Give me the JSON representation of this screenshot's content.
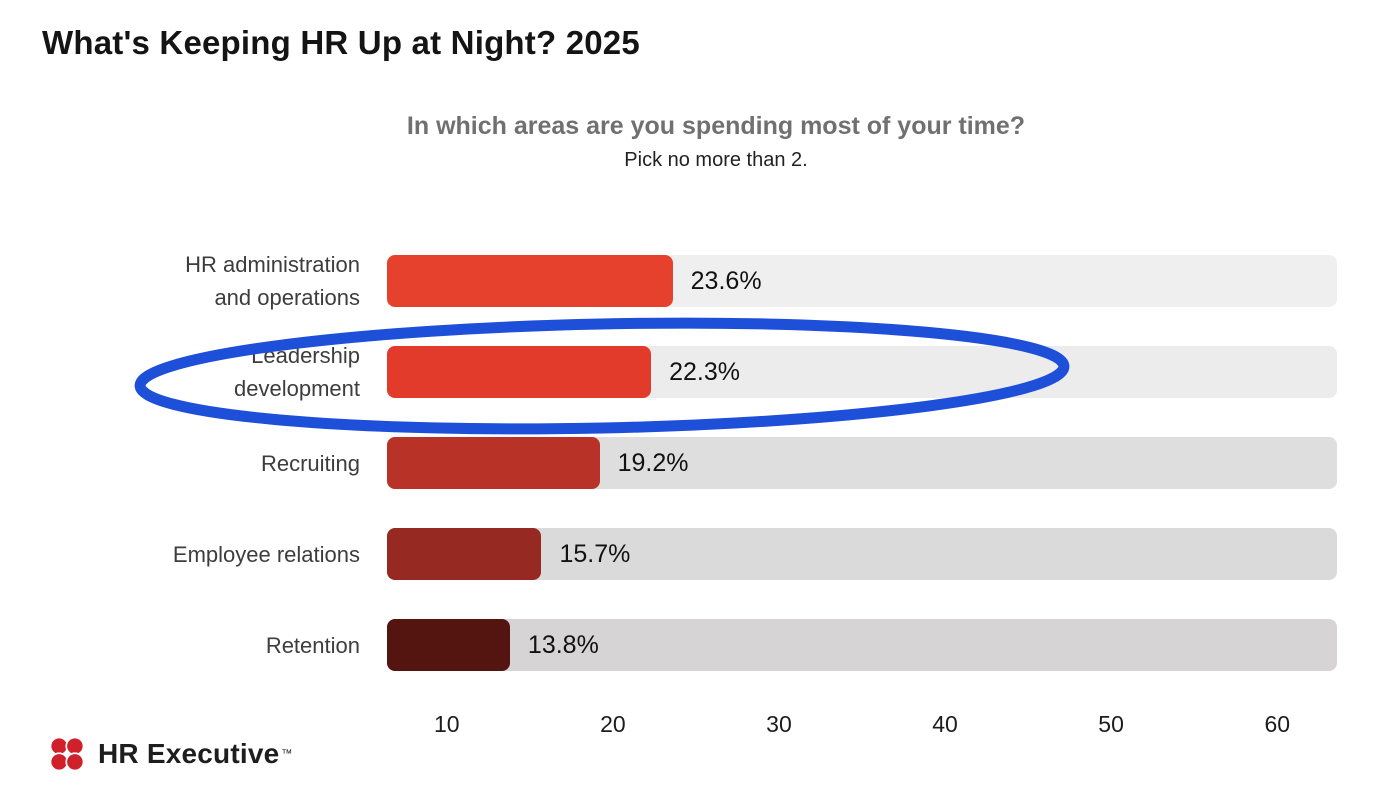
{
  "page": {
    "title": "What's Keeping HR Up at Night? 2025",
    "subtitle": "In which areas are you spending most of your time?",
    "subtitle2": "Pick no more than 2."
  },
  "chart_data": {
    "type": "bar",
    "orientation": "horizontal",
    "title": "What's Keeping HR Up at Night? 2025",
    "question": "In which areas are you spending most of your time?",
    "instruction": "Pick no more than 2.",
    "categories": [
      "HR administration\nand operations",
      "Leadership\ndevelopment",
      "Recruiting",
      "Employee relations",
      "Retention"
    ],
    "values": [
      23.6,
      22.3,
      19.2,
      15.7,
      13.8
    ],
    "value_labels": [
      "23.6%",
      "22.3%",
      "19.2%",
      "15.7%",
      "13.8%"
    ],
    "bar_colors": [
      "#e6412c",
      "#e23b2b",
      "#b93228",
      "#962a22",
      "#541410"
    ],
    "track_colors": [
      "#f0efef",
      "#edecec",
      "#dfdede",
      "#dbdada",
      "#d6d4d4"
    ],
    "x_ticks": [
      10,
      20,
      30,
      40,
      50,
      60
    ],
    "axis_min": 6.4,
    "axis_max": 63.6,
    "xlabel": "",
    "ylabel": "",
    "grid": false,
    "legend": false,
    "annotation": {
      "type": "ellipse",
      "target_category": "Leadership development",
      "color": "#1e4fd8",
      "meaning": "highlighted row"
    }
  },
  "footer": {
    "brand": "HR Executive",
    "trademark": "™",
    "logo_color": "#d0202a"
  }
}
